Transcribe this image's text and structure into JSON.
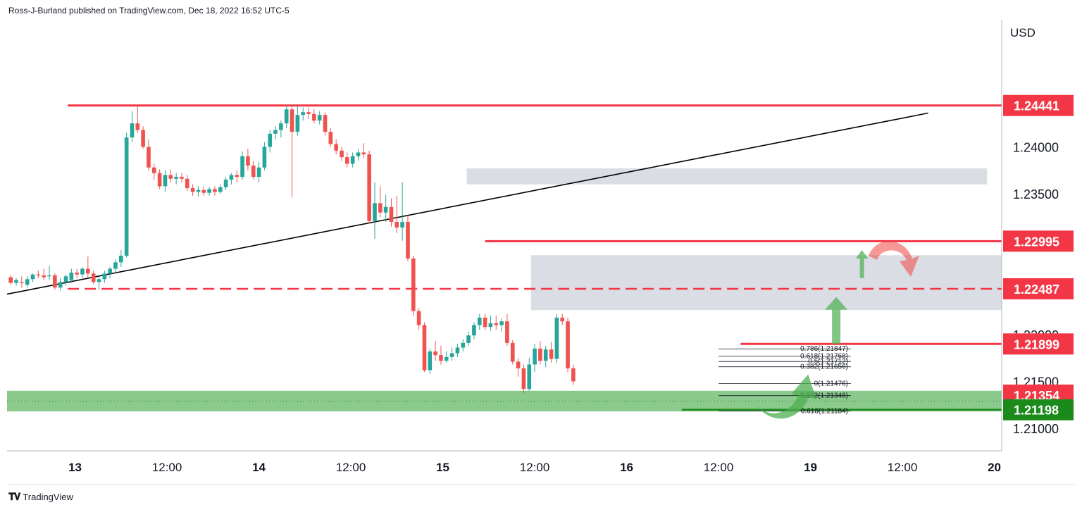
{
  "header": {
    "published": "Ross-J-Burland published on TradingView.com, Dec 18, 2022 16:52 UTC-5"
  },
  "footer": {
    "brand": "TradingView",
    "logo_icon": "tradingview-logo-icon"
  },
  "chart_data": {
    "type": "candlestick",
    "currency": "USD",
    "y_range": [
      1.2076,
      1.2534
    ],
    "y_ticks": [
      "1.21000",
      "1.21500",
      "1.22000",
      "1.23500",
      "1.24000",
      "1.24500"
    ],
    "x_ticks": [
      {
        "label": "13",
        "t": 0.0
      },
      {
        "label": "12:00",
        "t": 0.5
      },
      {
        "label": "14",
        "t": 1.0
      },
      {
        "label": "12:00",
        "t": 1.5
      },
      {
        "label": "15",
        "t": 2.0
      },
      {
        "label": "12:00",
        "t": 2.5
      },
      {
        "label": "16",
        "t": 3.0
      },
      {
        "label": "12:00",
        "t": 3.5
      },
      {
        "label": "19",
        "t": 4.0
      },
      {
        "label": "12:00",
        "t": 4.5
      },
      {
        "label": "20",
        "t": 5.0
      }
    ],
    "x_range": [
      -0.37,
      5.04
    ],
    "colors": {
      "up": "#26a69a",
      "down": "#ef5350",
      "level": "#f23645",
      "zone_gray": "#d1d4dc",
      "zone_green": "#4caf50"
    },
    "price_labels": [
      {
        "text": "1.24441",
        "price": 1.24441,
        "color": "#f23645"
      },
      {
        "text": "1.22995",
        "price": 1.22995,
        "color": "#f23645"
      },
      {
        "text": "1.22487",
        "price": 1.22487,
        "color": "#f23645"
      },
      {
        "text": "1.21899",
        "price": 1.21899,
        "color": "#f23645"
      },
      {
        "text": "1.21354",
        "price": 1.21354,
        "color": "#f23645"
      },
      {
        "text": "1.21198",
        "price": 1.21198,
        "color": "#1b8a1b"
      }
    ],
    "horizontal_levels": [
      {
        "price": 1.24441,
        "t_start": -0.04,
        "style": "solid"
      },
      {
        "price": 1.22995,
        "t_start": 2.23,
        "style": "solid"
      },
      {
        "price": 1.22487,
        "t_start": -0.04,
        "style": "dashed"
      },
      {
        "price": 1.21899,
        "t_start": 3.62,
        "style": "solid"
      },
      {
        "price": 1.21198,
        "t_start": 3.3,
        "style": "solid-green"
      }
    ],
    "zones": [
      {
        "price_top": 1.2377,
        "price_bottom": 1.236,
        "t_start": 2.13,
        "t_end": 4.96,
        "color": "gray"
      },
      {
        "price_top": 1.22845,
        "price_bottom": 1.2226,
        "t_start": 2.48,
        "t_end": 5.04,
        "color": "gray"
      },
      {
        "price_top": 1.214,
        "price_bottom": 1.2118,
        "t_start": -0.37,
        "t_end": 5.04,
        "color": "green"
      }
    ],
    "trendline": {
      "t1": -0.37,
      "p1": 1.2243,
      "t2": 4.64,
      "p2": 1.2436
    },
    "fibonacci": [
      {
        "label": "0.786(1.21847)",
        "price": 1.21847
      },
      {
        "label": "0.618(1.21768)",
        "price": 1.21768
      },
      {
        "label": "0.5(1.21712)",
        "price": 1.21712
      },
      {
        "label": "0.382(1.21656)",
        "price": 1.21656
      },
      {
        "label": "0(1.21476)",
        "price": 1.21476
      },
      {
        "label": "-0.272(1.21348)",
        "price": 1.21348
      },
      {
        "label": "-0.618(1.21184)",
        "price": 1.21184
      }
    ],
    "fib_t_range": [
      3.5,
      4.22
    ],
    "annotations": [
      {
        "kind": "up-arrow-thick",
        "t": 4.14,
        "price_from": 1.219,
        "price_to": 1.224,
        "color": "#4caf50"
      },
      {
        "kind": "up-arrow-thin",
        "t": 4.28,
        "price_from": 1.226,
        "price_to": 1.229,
        "color": "#4caf50"
      },
      {
        "kind": "curved-arrow-down",
        "t": 4.4,
        "price": 1.229,
        "color": "#ef5350"
      },
      {
        "kind": "curved-arrow-up",
        "t": 3.88,
        "price": 1.2135,
        "color": "#4caf50"
      }
    ],
    "candles": [
      [
        -0.35,
        1.2261,
        1.2263,
        1.2253,
        1.2255
      ],
      [
        -0.32,
        1.2255,
        1.226,
        1.2252,
        1.2258
      ],
      [
        -0.29,
        1.2256,
        1.2262,
        1.225,
        1.2255
      ],
      [
        -0.26,
        1.2253,
        1.2262,
        1.225,
        1.2259
      ],
      [
        -0.23,
        1.2259,
        1.2265,
        1.2256,
        1.2264
      ],
      [
        -0.2,
        1.2264,
        1.2268,
        1.226,
        1.2263
      ],
      [
        -0.17,
        1.2263,
        1.227,
        1.2258,
        1.2261
      ],
      [
        -0.14,
        1.2262,
        1.2273,
        1.2258,
        1.2263
      ],
      [
        -0.11,
        1.2263,
        1.2265,
        1.2248,
        1.225
      ],
      [
        -0.08,
        1.225,
        1.226,
        1.2247,
        1.2256
      ],
      [
        -0.05,
        1.2256,
        1.2264,
        1.2252,
        1.2262
      ],
      [
        -0.02,
        1.2258,
        1.227,
        1.2255,
        1.2266
      ],
      [
        0.01,
        1.2266,
        1.227,
        1.226,
        1.2264
      ],
      [
        0.04,
        1.2264,
        1.2272,
        1.226,
        1.227
      ],
      [
        0.07,
        1.227,
        1.2283,
        1.226,
        1.2265
      ],
      [
        0.1,
        1.2265,
        1.2268,
        1.2254,
        1.2256
      ],
      [
        0.13,
        1.2256,
        1.2262,
        1.2248,
        1.2259
      ],
      [
        0.16,
        1.2259,
        1.2268,
        1.2255,
        1.2265
      ],
      [
        0.19,
        1.2265,
        1.2272,
        1.226,
        1.227
      ],
      [
        0.22,
        1.227,
        1.228,
        1.2265,
        1.2277
      ],
      [
        0.25,
        1.2277,
        1.229,
        1.2272,
        1.2284
      ],
      [
        0.28,
        1.2284,
        1.2415,
        1.2282,
        1.241
      ],
      [
        0.31,
        1.241,
        1.2438,
        1.2405,
        1.2425
      ],
      [
        0.34,
        1.2425,
        1.2444,
        1.2415,
        1.2418
      ],
      [
        0.37,
        1.2418,
        1.2422,
        1.2398,
        1.24
      ],
      [
        0.4,
        1.24,
        1.2408,
        1.2375,
        1.2378
      ],
      [
        0.43,
        1.2378,
        1.2382,
        1.2365,
        1.2372
      ],
      [
        0.46,
        1.2372,
        1.2376,
        1.2355,
        1.2358
      ],
      [
        0.49,
        1.2358,
        1.2375,
        1.2352,
        1.237
      ],
      [
        0.52,
        1.237,
        1.2376,
        1.2362,
        1.2366
      ],
      [
        0.55,
        1.2366,
        1.2372,
        1.236,
        1.2368
      ],
      [
        0.58,
        1.2368,
        1.2372,
        1.2362,
        1.2366
      ],
      [
        0.61,
        1.2366,
        1.237,
        1.2353,
        1.2356
      ],
      [
        0.64,
        1.2356,
        1.236,
        1.2348,
        1.2352
      ],
      [
        0.67,
        1.2352,
        1.2358,
        1.2347,
        1.2354
      ],
      [
        0.7,
        1.2354,
        1.2358,
        1.2348,
        1.2351
      ],
      [
        0.73,
        1.2351,
        1.2357,
        1.2348,
        1.2355
      ],
      [
        0.76,
        1.2355,
        1.2358,
        1.2348,
        1.2352
      ],
      [
        0.79,
        1.2352,
        1.236,
        1.235,
        1.2357
      ],
      [
        0.82,
        1.2357,
        1.2368,
        1.2354,
        1.2365
      ],
      [
        0.85,
        1.2365,
        1.2372,
        1.236,
        1.237
      ],
      [
        0.88,
        1.237,
        1.2375,
        1.2362,
        1.2368
      ],
      [
        0.91,
        1.2368,
        1.2395,
        1.2365,
        1.239
      ],
      [
        0.94,
        1.239,
        1.2398,
        1.2375,
        1.238
      ],
      [
        0.97,
        1.238,
        1.2385,
        1.2365,
        1.2368
      ],
      [
        1.0,
        1.2368,
        1.2384,
        1.2362,
        1.2378
      ],
      [
        1.03,
        1.2378,
        1.2405,
        1.2375,
        1.24
      ],
      [
        1.06,
        1.24,
        1.2418,
        1.2394,
        1.2414
      ],
      [
        1.09,
        1.2414,
        1.2422,
        1.2408,
        1.2418
      ],
      [
        1.12,
        1.2418,
        1.2428,
        1.241,
        1.2425
      ],
      [
        1.15,
        1.2425,
        1.2444,
        1.242,
        1.244
      ],
      [
        1.18,
        1.244,
        1.2444,
        1.2346,
        1.2416
      ],
      [
        1.21,
        1.2416,
        1.2444,
        1.2412,
        1.2434
      ],
      [
        1.24,
        1.2434,
        1.2442,
        1.2428,
        1.2437
      ],
      [
        1.27,
        1.2437,
        1.2442,
        1.243,
        1.2435
      ],
      [
        1.3,
        1.2435,
        1.244,
        1.2425,
        1.2428
      ],
      [
        1.33,
        1.2428,
        1.2438,
        1.2424,
        1.2434
      ],
      [
        1.36,
        1.2434,
        1.2437,
        1.2412,
        1.2416
      ],
      [
        1.39,
        1.2416,
        1.242,
        1.24,
        1.2403
      ],
      [
        1.42,
        1.2403,
        1.2408,
        1.2392,
        1.2396
      ],
      [
        1.45,
        1.2396,
        1.24,
        1.2385,
        1.2389
      ],
      [
        1.48,
        1.2389,
        1.2394,
        1.2378,
        1.2382
      ],
      [
        1.51,
        1.2382,
        1.2394,
        1.2378,
        1.239
      ],
      [
        1.54,
        1.239,
        1.2398,
        1.2385,
        1.2394
      ],
      [
        1.57,
        1.2394,
        1.2404,
        1.2388,
        1.2392
      ],
      [
        1.6,
        1.2392,
        1.2396,
        1.2318,
        1.2321
      ],
      [
        1.63,
        1.2321,
        1.2362,
        1.2302,
        1.234
      ],
      [
        1.66,
        1.234,
        1.2358,
        1.2325,
        1.233
      ],
      [
        1.69,
        1.233,
        1.2349,
        1.232,
        1.2336
      ],
      [
        1.72,
        1.2336,
        1.2345,
        1.2315,
        1.232
      ],
      [
        1.75,
        1.232,
        1.2348,
        1.2308,
        1.2314
      ],
      [
        1.78,
        1.2314,
        1.2362,
        1.23,
        1.232
      ],
      [
        1.81,
        1.232,
        1.2326,
        1.2278,
        1.2281
      ],
      [
        1.84,
        1.2281,
        1.2284,
        1.222,
        1.2225
      ],
      [
        1.87,
        1.2225,
        1.2228,
        1.2205,
        1.221
      ],
      [
        1.9,
        1.221,
        1.2213,
        1.216,
        1.2162
      ],
      [
        1.93,
        1.2162,
        1.2185,
        1.2158,
        1.2182
      ],
      [
        1.96,
        1.2182,
        1.2193,
        1.2172,
        1.2178
      ],
      [
        1.99,
        1.2178,
        1.2188,
        1.2168,
        1.2172
      ],
      [
        2.02,
        1.2172,
        1.2182,
        1.217,
        1.2176
      ],
      [
        2.05,
        1.2176,
        1.2186,
        1.2172,
        1.218
      ],
      [
        2.08,
        1.218,
        1.219,
        1.2176,
        1.2186
      ],
      [
        2.11,
        1.2186,
        1.2195,
        1.2182,
        1.2191
      ],
      [
        2.14,
        1.2191,
        1.2203,
        1.2188,
        1.2199
      ],
      [
        2.17,
        1.2199,
        1.2213,
        1.2195,
        1.221
      ],
      [
        2.2,
        1.221,
        1.2222,
        1.2205,
        1.2218
      ],
      [
        2.23,
        1.2218,
        1.2222,
        1.2205,
        1.2208
      ],
      [
        2.26,
        1.2208,
        1.222,
        1.2204,
        1.2212
      ],
      [
        2.29,
        1.2212,
        1.222,
        1.2205,
        1.221
      ],
      [
        2.32,
        1.221,
        1.2217,
        1.2203,
        1.2214
      ],
      [
        2.35,
        1.2214,
        1.2222,
        1.2188,
        1.2191
      ],
      [
        2.38,
        1.2191,
        1.2194,
        1.2168,
        1.2171
      ],
      [
        2.41,
        1.2171,
        1.2175,
        1.2155,
        1.2164
      ],
      [
        2.44,
        1.2164,
        1.2168,
        1.2137,
        1.2142
      ],
      [
        2.47,
        1.2142,
        1.2175,
        1.214,
        1.2168
      ],
      [
        2.5,
        1.2168,
        1.219,
        1.216,
        1.2185
      ],
      [
        2.53,
        1.2185,
        1.2193,
        1.2168,
        1.2172
      ],
      [
        2.56,
        1.2172,
        1.2188,
        1.2165,
        1.2184
      ],
      [
        2.59,
        1.2184,
        1.2192,
        1.217,
        1.2174
      ],
      [
        2.62,
        1.2174,
        1.2222,
        1.217,
        1.2218
      ],
      [
        2.65,
        1.2218,
        1.2222,
        1.221,
        1.2214
      ],
      [
        2.68,
        1.2214,
        1.2218,
        1.216,
        1.2164
      ],
      [
        2.71,
        1.2164,
        1.2168,
        1.2146,
        1.215
      ]
    ]
  }
}
